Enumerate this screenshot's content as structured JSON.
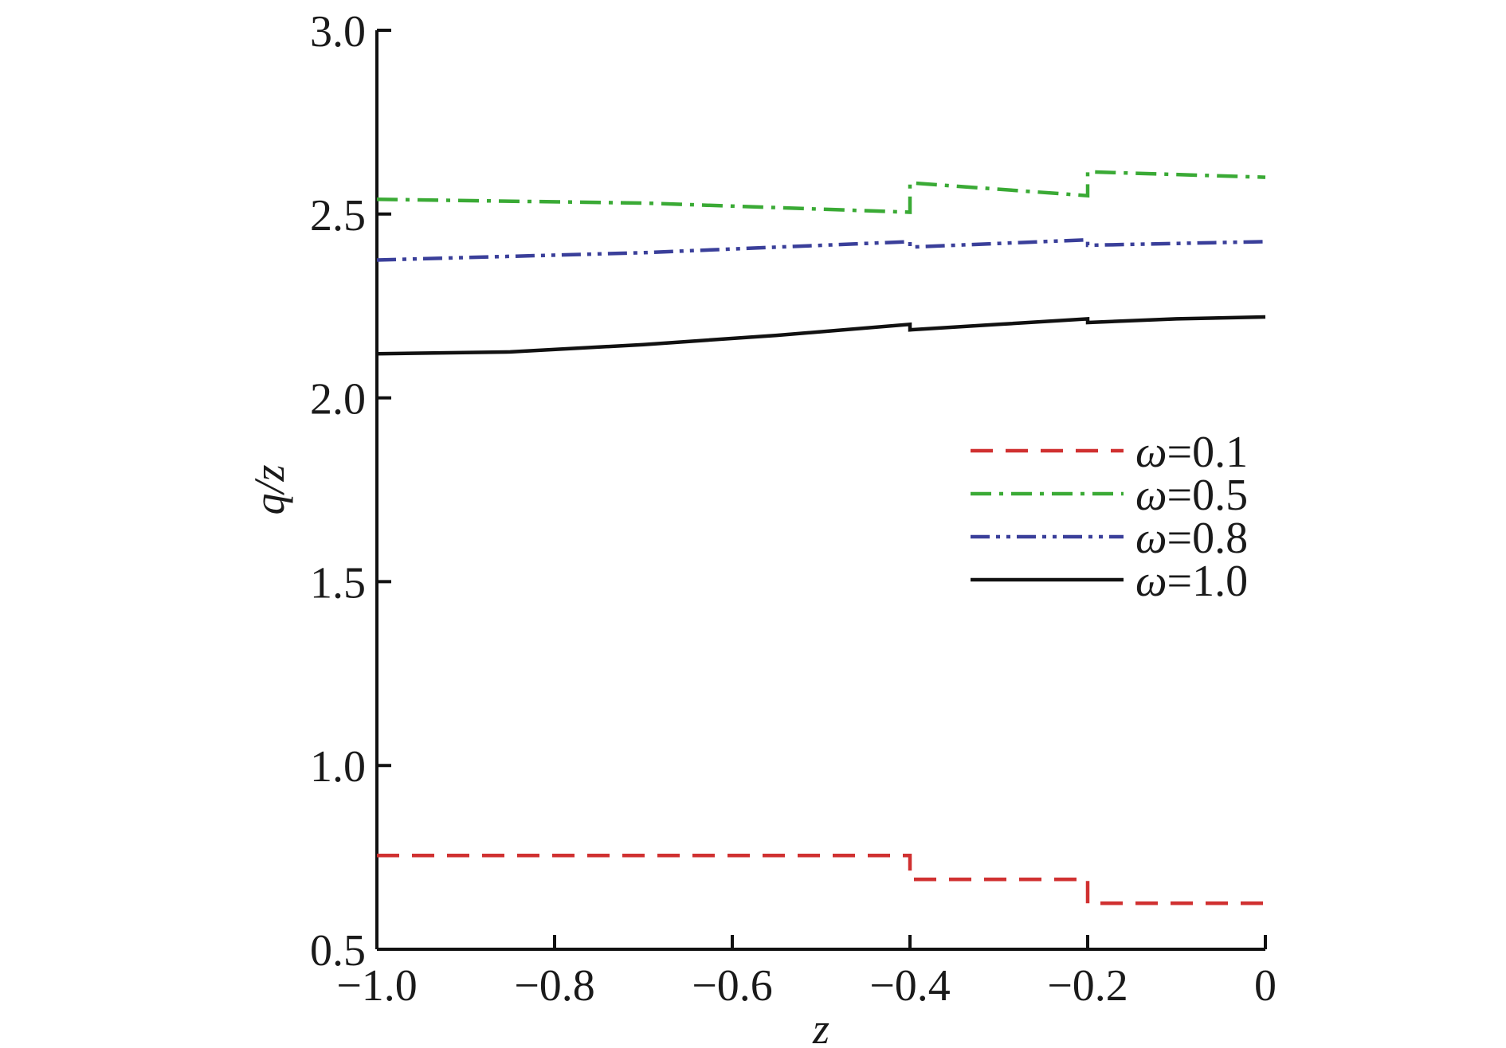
{
  "chart_data": {
    "type": "line",
    "xlabel": "z",
    "ylabel": "q/z",
    "xlim": [
      -1.0,
      0
    ],
    "ylim": [
      0.5,
      3.0
    ],
    "xticks": [
      {
        "value": -1.0,
        "label": "−1.0"
      },
      {
        "value": -0.8,
        "label": "−0.8"
      },
      {
        "value": -0.6,
        "label": "−0.6"
      },
      {
        "value": -0.4,
        "label": "−0.4"
      },
      {
        "value": -0.2,
        "label": "−0.2"
      },
      {
        "value": 0,
        "label": "0"
      }
    ],
    "yticks": [
      {
        "value": 0.5,
        "label": "0.5"
      },
      {
        "value": 1.0,
        "label": "1.0"
      },
      {
        "value": 1.5,
        "label": "1.5"
      },
      {
        "value": 2.0,
        "label": "2.0"
      },
      {
        "value": 2.5,
        "label": "2.5"
      },
      {
        "value": 3.0,
        "label": "3.0"
      }
    ],
    "grid": false,
    "legend_position": "center-right",
    "series": [
      {
        "name": "ω=0.1",
        "legend_symbol": "ω",
        "legend_value": "=0.1",
        "color": "#d03030",
        "dash": "28 16",
        "x": [
          -1.0,
          -0.4,
          -0.4,
          -0.2,
          -0.2,
          0
        ],
        "y": [
          0.755,
          0.755,
          0.69,
          0.69,
          0.625,
          0.625
        ]
      },
      {
        "name": "ω=0.5",
        "legend_symbol": "ω",
        "legend_value": "=0.5",
        "color": "#3aaa35",
        "dash": "26 10 5 10",
        "x": [
          -1.0,
          -0.7,
          -0.4,
          -0.4,
          -0.2,
          -0.2,
          0
        ],
        "y": [
          2.54,
          2.53,
          2.505,
          2.585,
          2.55,
          2.615,
          2.6
        ]
      },
      {
        "name": "ω=0.8",
        "legend_symbol": "ω",
        "legend_value": "=0.8",
        "color": "#3a3f9a",
        "dash": "24 8 5 8 5 8",
        "x": [
          -1.0,
          -0.7,
          -0.4,
          -0.4,
          -0.2,
          -0.2,
          0
        ],
        "y": [
          2.375,
          2.395,
          2.425,
          2.41,
          2.43,
          2.415,
          2.425
        ]
      },
      {
        "name": "ω=1.0",
        "legend_symbol": "ω",
        "legend_value": "=1.0",
        "color": "#111111",
        "dash": "",
        "x": [
          -1.0,
          -0.85,
          -0.7,
          -0.55,
          -0.4,
          -0.4,
          -0.3,
          -0.2,
          -0.2,
          -0.1,
          0
        ],
        "y": [
          2.12,
          2.125,
          2.145,
          2.17,
          2.2,
          2.185,
          2.2,
          2.215,
          2.205,
          2.215,
          2.22
        ]
      }
    ]
  }
}
